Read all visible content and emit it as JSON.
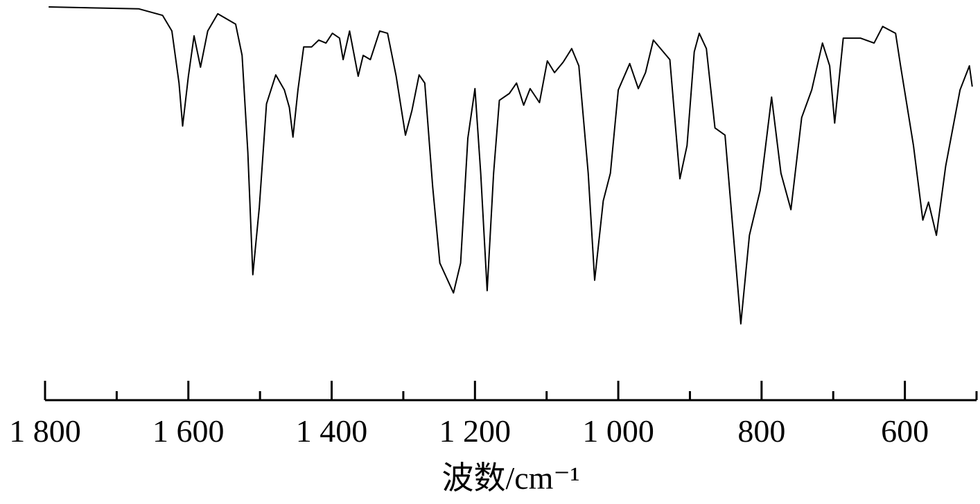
{
  "chart_data": {
    "type": "line",
    "xlabel": "波数/cm⁻¹",
    "color": "#000000",
    "x": [
      1795,
      1669,
      1636,
      1623,
      1613,
      1608,
      1600,
      1592,
      1583,
      1573,
      1559,
      1534,
      1525,
      1517,
      1510,
      1501,
      1491,
      1478,
      1466,
      1459,
      1454,
      1447,
      1439,
      1428,
      1418,
      1408,
      1399,
      1389,
      1384,
      1375,
      1363,
      1356,
      1346,
      1333,
      1322,
      1310,
      1297,
      1288,
      1278,
      1270,
      1259,
      1249,
      1230,
      1220,
      1210,
      1200,
      1192,
      1183,
      1174,
      1166,
      1152,
      1142,
      1132,
      1123,
      1110,
      1099,
      1089,
      1077,
      1065,
      1055,
      1042,
      1033,
      1021,
      1011,
      1000,
      984,
      972,
      962,
      951,
      928,
      922,
      914,
      904,
      894,
      887,
      877,
      865,
      851,
      836,
      829,
      817,
      802,
      786,
      773,
      759,
      744,
      730,
      715,
      705,
      698,
      686,
      662,
      643,
      631,
      613,
      606,
      588,
      575,
      567,
      556,
      543,
      523,
      510,
      506
    ],
    "values": [
      100,
      99.4,
      97.4,
      92.6,
      76.6,
      63.4,
      78.7,
      91.1,
      81.5,
      92.6,
      97.9,
      94.7,
      85.1,
      55.3,
      17.7,
      38.3,
      70.2,
      79.1,
      74.5,
      69.1,
      60,
      74.5,
      87.7,
      87.7,
      89.8,
      88.9,
      91.9,
      90.4,
      83.8,
      92.6,
      78.7,
      85.1,
      83.8,
      92.6,
      91.9,
      78.7,
      60.6,
      68.1,
      79.1,
      76.6,
      44.7,
      21.3,
      12.1,
      21.3,
      59.6,
      74.9,
      48.9,
      12.8,
      48.9,
      71.3,
      73.4,
      76.6,
      69.8,
      74.9,
      70.6,
      83.4,
      79.8,
      83,
      87.2,
      81.9,
      48.9,
      16,
      40.4,
      48.9,
      74.5,
      82.6,
      74.9,
      79.8,
      89.8,
      83.8,
      68.1,
      47.2,
      57.4,
      86.2,
      91.9,
      87.2,
      62.8,
      60.6,
      21.3,
      2.6,
      29.8,
      43.6,
      72.3,
      48.9,
      37.7,
      66,
      74.5,
      88.9,
      81.9,
      64.3,
      90.4,
      90.4,
      88.9,
      94,
      91.9,
      81.9,
      57.4,
      34.5,
      40,
      29.8,
      51.1,
      74.5,
      81.9,
      75.5
    ],
    "xlim": [
      1800,
      500
    ],
    "ylim": [
      0,
      100
    ],
    "xticks": [
      {
        "value": 1800,
        "label": "1 800"
      },
      {
        "value": 1600,
        "label": "1 600"
      },
      {
        "value": 1400,
        "label": "1 400"
      },
      {
        "value": 1200,
        "label": "1 200"
      },
      {
        "value": 1000,
        "label": "1 000"
      },
      800,
      600
    ],
    "xminorticks": [
      1700,
      1500,
      1300,
      1100,
      900,
      700,
      500
    ]
  }
}
